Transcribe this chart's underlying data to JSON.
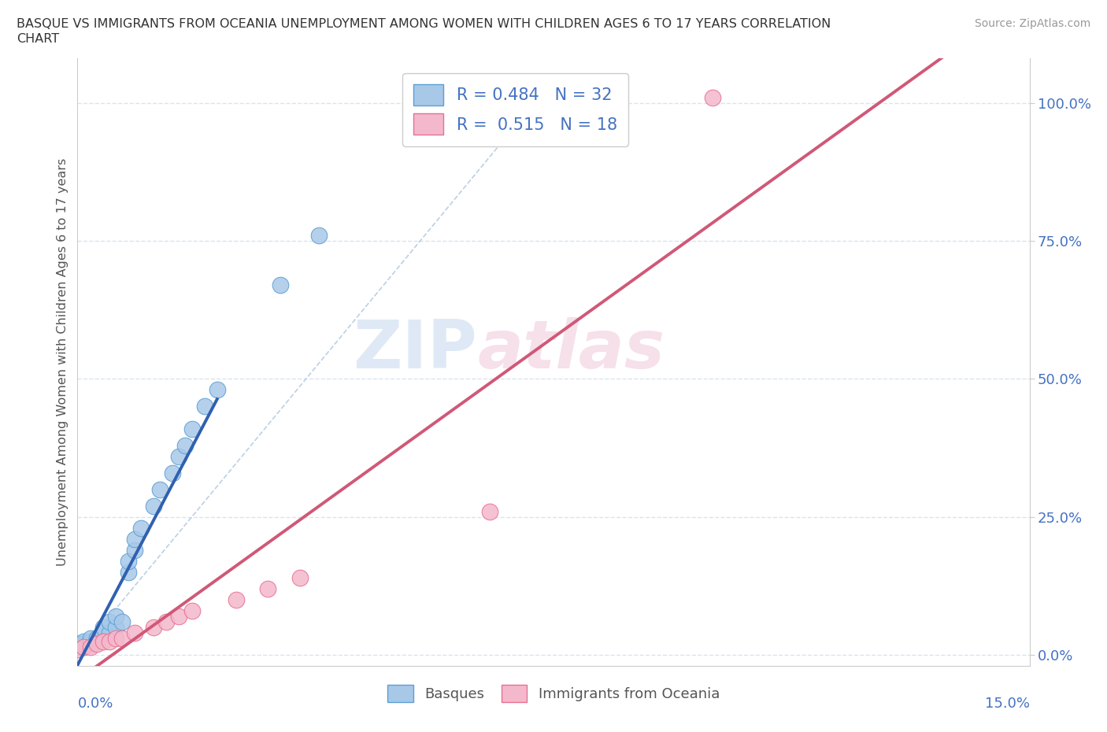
{
  "title_line1": "BASQUE VS IMMIGRANTS FROM OCEANIA UNEMPLOYMENT AMONG WOMEN WITH CHILDREN AGES 6 TO 17 YEARS CORRELATION",
  "title_line2": "CHART",
  "source": "Source: ZipAtlas.com",
  "ylabel": "Unemployment Among Women with Children Ages 6 to 17 years",
  "y_ticks": [
    "0.0%",
    "25.0%",
    "50.0%",
    "75.0%",
    "100.0%"
  ],
  "y_tick_vals": [
    0.0,
    0.25,
    0.5,
    0.75,
    1.0
  ],
  "xlim": [
    0.0,
    0.15
  ],
  "ylim": [
    -0.02,
    1.08
  ],
  "basque_color": "#a8c8e8",
  "oceania_color": "#f4b8cc",
  "basque_edge_color": "#5a9fd4",
  "oceania_edge_color": "#e87090",
  "basque_line_color": "#3060b0",
  "oceania_line_color": "#d05878",
  "diagonal_color": "#b0c8e0",
  "legend_entry_basques": "Basques",
  "legend_entry_oceania": "Immigrants from Oceania",
  "watermark_zip": "ZIP",
  "watermark_atlas": "atlas",
  "background_color": "#ffffff",
  "grid_color": "#d8e4f0",
  "basque_x": [
    0.0,
    0.0,
    0.001,
    0.001,
    0.001,
    0.002,
    0.002,
    0.002,
    0.003,
    0.003,
    0.004,
    0.004,
    0.005,
    0.005,
    0.006,
    0.006,
    0.007,
    0.008,
    0.008,
    0.009,
    0.009,
    0.01,
    0.012,
    0.013,
    0.015,
    0.016,
    0.017,
    0.018,
    0.02,
    0.022,
    0.032,
    0.038
  ],
  "basque_y": [
    0.015,
    0.02,
    0.015,
    0.02,
    0.025,
    0.02,
    0.025,
    0.03,
    0.03,
    0.03,
    0.04,
    0.05,
    0.04,
    0.06,
    0.05,
    0.07,
    0.06,
    0.15,
    0.17,
    0.19,
    0.21,
    0.23,
    0.27,
    0.3,
    0.33,
    0.36,
    0.38,
    0.41,
    0.45,
    0.48,
    0.67,
    0.76
  ],
  "oceania_x": [
    0.0,
    0.001,
    0.002,
    0.003,
    0.004,
    0.005,
    0.006,
    0.007,
    0.009,
    0.012,
    0.014,
    0.016,
    0.018,
    0.025,
    0.03,
    0.035,
    0.065,
    0.1
  ],
  "oceania_y": [
    0.01,
    0.015,
    0.015,
    0.02,
    0.025,
    0.025,
    0.03,
    0.03,
    0.04,
    0.05,
    0.06,
    0.07,
    0.08,
    0.1,
    0.12,
    0.14,
    0.26,
    1.01
  ],
  "basque_line_x": [
    0.0,
    0.022
  ],
  "oceania_line_x": [
    0.0,
    0.15
  ]
}
